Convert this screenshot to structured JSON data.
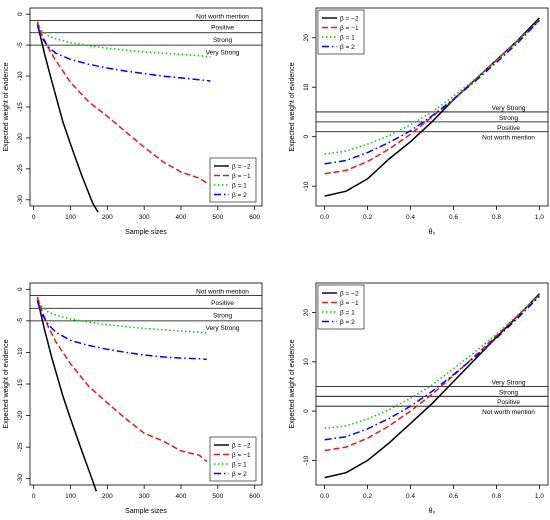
{
  "chart_data": [
    {
      "type": "line",
      "xlabel": "Sample sizes",
      "ylabel": "Expected weight of evidence",
      "xlim": [
        -10,
        620
      ],
      "ylim": [
        -31,
        1
      ],
      "xticks": [
        0,
        100,
        200,
        300,
        400,
        500,
        600
      ],
      "yticks": [
        0,
        -5,
        -10,
        -15,
        -20,
        -25,
        -30
      ],
      "legend_position": "bottom-right",
      "reference_lines": [
        {
          "y": -1,
          "label": "Not worth mention",
          "label_y": -0.2
        },
        {
          "y": -3,
          "label": "Positive",
          "label_y": -2.0
        },
        {
          "y": -5,
          "label": "Strong",
          "label_y": -4.0
        },
        {
          "label": "Very Strong",
          "label_y": -6.0
        }
      ],
      "series": [
        {
          "name": "β = −2",
          "color": "#000000",
          "dash": "solid",
          "x": [
            10,
            20,
            30,
            50,
            80,
            100,
            130,
            160,
            175
          ],
          "y": [
            -1.5,
            -4,
            -6.5,
            -11,
            -17.5,
            -21,
            -26,
            -30.5,
            -32
          ]
        },
        {
          "name": "β = −1",
          "color": "#e41a1c",
          "dash": "dashed",
          "x": [
            10,
            20,
            40,
            60,
            100,
            150,
            200,
            250,
            300,
            350,
            400,
            450,
            470
          ],
          "y": [
            -1.2,
            -3,
            -5.5,
            -7.5,
            -11,
            -14.2,
            -16.5,
            -19,
            -21.5,
            -23.8,
            -25.5,
            -26.5,
            -27.3
          ]
        },
        {
          "name": "β = 1",
          "color": "#00cc00",
          "dash": "dotted",
          "x": [
            10,
            20,
            40,
            60,
            100,
            150,
            200,
            250,
            300,
            350,
            400,
            450,
            480
          ],
          "y": [
            -1.5,
            -2.6,
            -3.5,
            -4,
            -4.6,
            -5.1,
            -5.5,
            -5.8,
            -6.1,
            -6.3,
            -6.5,
            -6.7,
            -6.9
          ]
        },
        {
          "name": "β = 2",
          "color": "#0000ff",
          "dash": "dotdash",
          "x": [
            10,
            20,
            40,
            60,
            100,
            150,
            200,
            250,
            300,
            350,
            400,
            450,
            480
          ],
          "y": [
            -1.8,
            -3.6,
            -5.3,
            -6.3,
            -7.3,
            -8.1,
            -8.7,
            -9.2,
            -9.6,
            -10,
            -10.3,
            -10.6,
            -10.8
          ]
        }
      ]
    },
    {
      "type": "line",
      "xlabel": "θ₀",
      "ylabel": "Expected weight of evidence",
      "xlim": [
        -0.04,
        1.04
      ],
      "ylim": [
        -14,
        26
      ],
      "xticks": [
        0.0,
        0.2,
        0.4,
        0.6,
        0.8,
        1.0
      ],
      "xticklabels": [
        "0.0",
        "0.2",
        "0.4",
        "0.6",
        "0.8",
        "1.0"
      ],
      "yticks": [
        -10,
        0,
        10,
        20
      ],
      "legend_position": "top-left",
      "reference_lines": [
        {
          "y": 5,
          "label": "Very Strong",
          "label_y": 6.0
        },
        {
          "y": 3,
          "label": "Strong",
          "label_y": 4.0
        },
        {
          "y": 1,
          "label": "Positive",
          "label_y": 2.0
        },
        {
          "label": "Not worth mention",
          "label_y": 0.0
        }
      ],
      "series": [
        {
          "name": "β = −2",
          "color": "#000000",
          "dash": "solid",
          "x": [
            0,
            0.1,
            0.2,
            0.3,
            0.4,
            0.5,
            0.6,
            0.7,
            0.8,
            0.9,
            1.0
          ],
          "y": [
            -12,
            -11,
            -8.5,
            -4.5,
            -1,
            3,
            7.5,
            11.5,
            15.5,
            19.5,
            24
          ]
        },
        {
          "name": "β = −1",
          "color": "#e41a1c",
          "dash": "dashed",
          "x": [
            0,
            0.1,
            0.2,
            0.3,
            0.4,
            0.5,
            0.6,
            0.7,
            0.8,
            0.9,
            1.0
          ],
          "y": [
            -7.5,
            -6.8,
            -5,
            -2.5,
            0.5,
            4,
            7.5,
            11.5,
            15.5,
            19.5,
            23.5
          ]
        },
        {
          "name": "β = 1",
          "color": "#00cc00",
          "dash": "dotted",
          "x": [
            0,
            0.1,
            0.2,
            0.3,
            0.4,
            0.5,
            0.6,
            0.7,
            0.8,
            0.9,
            1.0
          ],
          "y": [
            -3.5,
            -2.9,
            -1.5,
            0.2,
            2.4,
            5,
            8.2,
            11.6,
            15.3,
            19.3,
            23.5
          ]
        },
        {
          "name": "β = 2",
          "color": "#0000ff",
          "dash": "dotdash",
          "x": [
            0,
            0.1,
            0.2,
            0.3,
            0.4,
            0.5,
            0.6,
            0.7,
            0.8,
            0.9,
            1.0
          ],
          "y": [
            -5.5,
            -4.8,
            -3.2,
            -1.2,
            1.2,
            4.2,
            7.6,
            11.2,
            15,
            19,
            23.5
          ]
        }
      ]
    },
    {
      "type": "line",
      "xlabel": "Sample sizes",
      "ylabel": "Expected weight of evidence",
      "xlim": [
        -10,
        620
      ],
      "ylim": [
        -31,
        1
      ],
      "xticks": [
        0,
        100,
        200,
        300,
        400,
        500,
        600
      ],
      "yticks": [
        0,
        -5,
        -10,
        -15,
        -20,
        -25,
        -30
      ],
      "legend_position": "bottom-right",
      "reference_lines": [
        {
          "y": -1,
          "label": "Not worth mention",
          "label_y": -0.2
        },
        {
          "y": -3,
          "label": "Positive",
          "label_y": -2.0
        },
        {
          "y": -5,
          "label": "Strong",
          "label_y": -4.0
        },
        {
          "label": "Very Strong",
          "label_y": -6.0
        }
      ],
      "series": [
        {
          "name": "β = −2",
          "color": "#000000",
          "dash": "solid",
          "x": [
            10,
            20,
            30,
            50,
            80,
            100,
            130,
            160,
            170
          ],
          "y": [
            -1.5,
            -4,
            -6.5,
            -11,
            -17,
            -20.5,
            -25.5,
            -30.3,
            -32
          ]
        },
        {
          "name": "β = −1",
          "color": "#e41a1c",
          "dash": "dashed",
          "x": [
            10,
            20,
            40,
            60,
            100,
            150,
            200,
            250,
            300,
            350,
            400,
            450,
            470
          ],
          "y": [
            -1.2,
            -3,
            -6,
            -8.3,
            -11.8,
            -15.4,
            -18,
            -20.5,
            -22.8,
            -24,
            -25.6,
            -26.3,
            -27.3
          ]
        },
        {
          "name": "β = 1",
          "color": "#00cc00",
          "dash": "dotted",
          "x": [
            10,
            20,
            40,
            60,
            100,
            150,
            200,
            250,
            300,
            350,
            400,
            450,
            470
          ],
          "y": [
            -1.5,
            -2.6,
            -3.6,
            -4.1,
            -4.7,
            -5.2,
            -5.6,
            -5.9,
            -6.2,
            -6.4,
            -6.6,
            -6.8,
            -6.9
          ]
        },
        {
          "name": "β = 2",
          "color": "#0000ff",
          "dash": "dotdash",
          "x": [
            10,
            20,
            40,
            60,
            100,
            150,
            200,
            250,
            300,
            350,
            400,
            450,
            470
          ],
          "y": [
            -1.8,
            -3.7,
            -5.6,
            -6.8,
            -8.1,
            -8.9,
            -9.5,
            -10,
            -10.4,
            -10.7,
            -10.9,
            -11,
            -11.1
          ]
        }
      ]
    },
    {
      "type": "line",
      "xlabel": "θ₀",
      "ylabel": "Expected weight of evidence",
      "xlim": [
        -0.04,
        1.04
      ],
      "ylim": [
        -15,
        26
      ],
      "xticks": [
        0.0,
        0.2,
        0.4,
        0.6,
        0.8,
        1.0
      ],
      "xticklabels": [
        "0.0",
        "0.2",
        "0.4",
        "0.6",
        "0.8",
        "1.0"
      ],
      "yticks": [
        -10,
        0,
        10,
        20
      ],
      "legend_position": "top-left",
      "reference_lines": [
        {
          "y": 5,
          "label": "Very Strong",
          "label_y": 6.0
        },
        {
          "y": 3,
          "label": "Strong",
          "label_y": 4.0
        },
        {
          "y": 1,
          "label": "Positive",
          "label_y": 2.0
        },
        {
          "label": "Not worth mention",
          "label_y": 0.0
        }
      ],
      "series": [
        {
          "name": "β = −2",
          "color": "#000000",
          "dash": "solid",
          "x": [
            0,
            0.1,
            0.2,
            0.3,
            0.4,
            0.5,
            0.6,
            0.7,
            0.8,
            0.9,
            1.0
          ],
          "y": [
            -13.5,
            -12.5,
            -10,
            -6.5,
            -2.5,
            1.5,
            6,
            10.5,
            15,
            19.3,
            23.8
          ]
        },
        {
          "name": "β = −1",
          "color": "#e41a1c",
          "dash": "dashed",
          "x": [
            0,
            0.1,
            0.2,
            0.3,
            0.4,
            0.5,
            0.6,
            0.7,
            0.8,
            0.9,
            1.0
          ],
          "y": [
            -8,
            -7.3,
            -5.5,
            -3,
            0,
            3.4,
            7.2,
            11.2,
            15.3,
            19.4,
            23.6
          ]
        },
        {
          "name": "β = 1",
          "color": "#00cc00",
          "dash": "dotted",
          "x": [
            0,
            0.1,
            0.2,
            0.3,
            0.4,
            0.5,
            0.6,
            0.7,
            0.8,
            0.9,
            1.0
          ],
          "y": [
            -3.5,
            -3,
            -1.6,
            0.3,
            2.6,
            5.3,
            8.6,
            12,
            15.6,
            19.5,
            23.5
          ]
        },
        {
          "name": "β = 2",
          "color": "#0000ff",
          "dash": "dotdash",
          "x": [
            0,
            0.1,
            0.2,
            0.3,
            0.4,
            0.5,
            0.6,
            0.7,
            0.8,
            0.9,
            1.0
          ],
          "y": [
            -5.8,
            -5.2,
            -3.6,
            -1.5,
            1,
            4,
            7.4,
            11,
            14.8,
            18.9,
            23.3
          ]
        }
      ]
    }
  ]
}
